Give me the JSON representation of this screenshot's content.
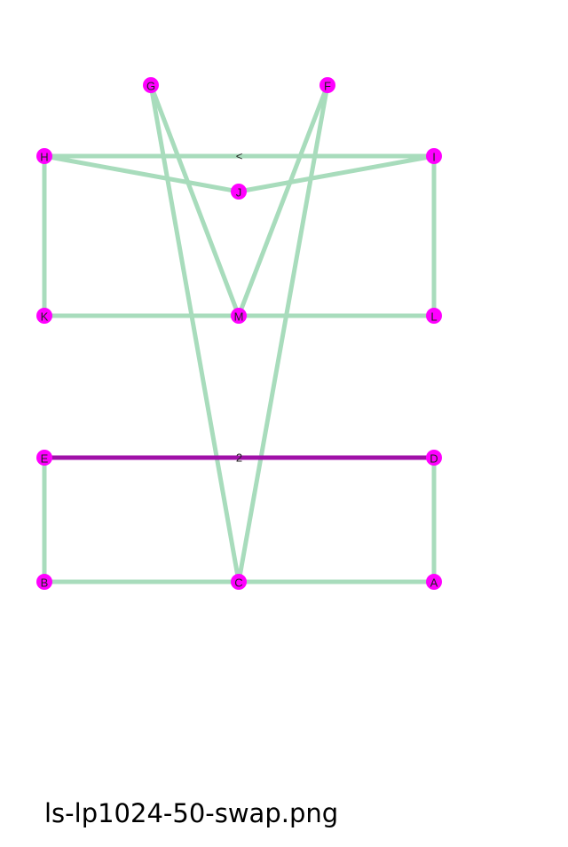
{
  "colors": {
    "node_fill": "#ff00ff",
    "edge_default": "#a8dcbc",
    "edge_highlight": "#a010a8",
    "background": "#ffffff"
  },
  "nodes": [
    {
      "id": "G",
      "label": "G"
    },
    {
      "id": "F",
      "label": "F"
    },
    {
      "id": "H",
      "label": "H"
    },
    {
      "id": "I",
      "label": "I"
    },
    {
      "id": "J",
      "label": "J"
    },
    {
      "id": "K",
      "label": "K"
    },
    {
      "id": "M",
      "label": "M"
    },
    {
      "id": "L",
      "label": "L"
    },
    {
      "id": "E",
      "label": "E"
    },
    {
      "id": "D",
      "label": "D"
    },
    {
      "id": "B",
      "label": "B"
    },
    {
      "id": "C",
      "label": "C"
    },
    {
      "id": "A",
      "label": "A"
    }
  ],
  "edges": [
    {
      "from": "H",
      "to": "I",
      "highlight": false,
      "label": "<"
    },
    {
      "from": "H",
      "to": "J",
      "highlight": false,
      "label": ""
    },
    {
      "from": "J",
      "to": "I",
      "highlight": false,
      "label": ""
    },
    {
      "from": "H",
      "to": "K",
      "highlight": false,
      "label": ""
    },
    {
      "from": "I",
      "to": "L",
      "highlight": false,
      "label": ""
    },
    {
      "from": "K",
      "to": "M",
      "highlight": false,
      "label": ""
    },
    {
      "from": "M",
      "to": "L",
      "highlight": false,
      "label": ""
    },
    {
      "from": "G",
      "to": "M",
      "highlight": false,
      "label": ""
    },
    {
      "from": "F",
      "to": "M",
      "highlight": false,
      "label": ""
    },
    {
      "from": "G",
      "to": "C",
      "highlight": false,
      "label": ""
    },
    {
      "from": "F",
      "to": "C",
      "highlight": false,
      "label": ""
    },
    {
      "from": "E",
      "to": "D",
      "highlight": true,
      "label": "2"
    },
    {
      "from": "E",
      "to": "B",
      "highlight": false,
      "label": ""
    },
    {
      "from": "D",
      "to": "A",
      "highlight": false,
      "label": ""
    },
    {
      "from": "B",
      "to": "C",
      "highlight": false,
      "label": ""
    },
    {
      "from": "C",
      "to": "A",
      "highlight": false,
      "label": ""
    }
  ],
  "caption": "ls-lp1024-50-swap.png"
}
